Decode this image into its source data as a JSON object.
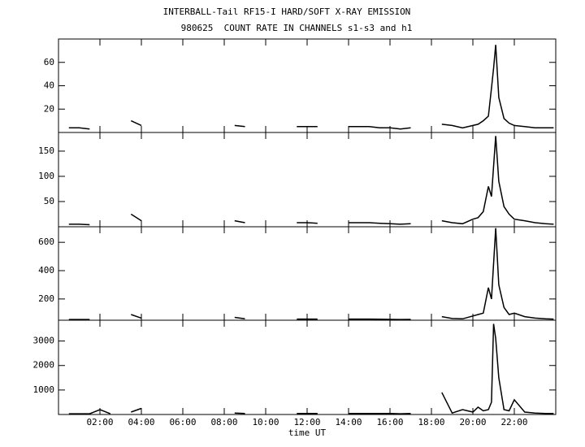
{
  "chart_data": [
    {
      "type": "line",
      "title": "INTERBALL-Tail RF15-I HARD/SOFT X-RAY EMISSION",
      "subtitle": "980625  COUNT RATE IN CHANNELS s1-s3 and h1",
      "x": [
        0.5,
        1,
        1.5,
        2,
        2.5,
        3,
        3.5,
        4,
        4.5,
        5,
        5.5,
        6,
        6.5,
        7,
        7.5,
        8,
        8.5,
        9,
        9.5,
        10,
        10.5,
        11,
        11.5,
        12,
        12.5,
        13,
        13.5,
        14,
        14.5,
        15,
        15.5,
        16,
        16.5,
        17,
        17.5,
        18,
        18.5,
        19,
        19.5,
        20,
        20.25,
        20.5,
        20.75,
        20.9,
        21,
        21.1,
        21.25,
        21.5,
        21.75,
        22,
        22.5,
        23,
        23.5,
        23.9
      ],
      "values": [
        4,
        4,
        3,
        null,
        3,
        null,
        10,
        6,
        null,
        3,
        null,
        null,
        3,
        null,
        3,
        null,
        6,
        5,
        null,
        null,
        null,
        null,
        5,
        5,
        5,
        null,
        null,
        5,
        5,
        5,
        4,
        4,
        3,
        4,
        null,
        null,
        7,
        6,
        4,
        6,
        7,
        10,
        14,
        38,
        55,
        75,
        30,
        12,
        8,
        6,
        5,
        4,
        4,
        4
      ],
      "color": "#000000",
      "xlim": [
        0,
        24
      ],
      "ylim": [
        0,
        80
      ],
      "yticks": [
        20,
        40,
        60
      ]
    },
    {
      "type": "line",
      "x": [
        0.5,
        1,
        1.5,
        2,
        2.5,
        3,
        3.5,
        4,
        4.5,
        5,
        5.5,
        6,
        6.5,
        7,
        7.5,
        8,
        8.5,
        9,
        9.5,
        10,
        10.5,
        11,
        11.5,
        12,
        12.5,
        13,
        13.5,
        14,
        14.5,
        15,
        15.5,
        16,
        16.5,
        17,
        17.5,
        18,
        18.5,
        19,
        19.5,
        20,
        20.25,
        20.5,
        20.75,
        20.9,
        21,
        21.1,
        21.25,
        21.5,
        21.75,
        22,
        22.5,
        23,
        23.5,
        23.9
      ],
      "values": [
        5,
        5,
        4,
        null,
        4,
        null,
        25,
        12,
        null,
        4,
        null,
        null,
        4,
        null,
        4,
        null,
        12,
        8,
        null,
        null,
        null,
        null,
        8,
        8,
        7,
        null,
        null,
        8,
        8,
        8,
        7,
        6,
        5,
        6,
        null,
        null,
        12,
        8,
        6,
        15,
        18,
        30,
        80,
        60,
        120,
        180,
        90,
        40,
        25,
        15,
        12,
        8,
        6,
        5
      ],
      "color": "#000000",
      "xlim": [
        0,
        24
      ],
      "ylim": [
        0,
        187
      ],
      "yticks": [
        50,
        100,
        150
      ]
    },
    {
      "type": "line",
      "x": [
        0.5,
        1,
        1.5,
        2,
        2.5,
        3,
        3.5,
        4,
        4.5,
        5,
        5.5,
        6,
        6.5,
        7,
        7.5,
        8,
        8.5,
        9,
        9.5,
        10,
        10.5,
        11,
        11.5,
        12,
        12.5,
        13,
        13.5,
        14,
        14.5,
        15,
        15.5,
        16,
        16.5,
        17,
        17.5,
        18,
        18.5,
        19,
        19.5,
        20,
        20.25,
        20.5,
        20.75,
        20.9,
        21,
        21.1,
        21.25,
        21.5,
        21.75,
        22,
        22.5,
        23,
        23.5,
        23.9
      ],
      "values": [
        55,
        55,
        55,
        null,
        55,
        null,
        90,
        65,
        null,
        55,
        null,
        null,
        55,
        null,
        55,
        null,
        70,
        60,
        null,
        null,
        null,
        null,
        58,
        58,
        58,
        null,
        null,
        58,
        58,
        58,
        57,
        56,
        55,
        56,
        null,
        null,
        75,
        62,
        60,
        80,
        90,
        100,
        280,
        200,
        450,
        700,
        300,
        140,
        90,
        100,
        75,
        65,
        60,
        58
      ],
      "color": "#000000",
      "xlim": [
        0,
        24
      ],
      "ylim": [
        50,
        710
      ],
      "yticks": [
        200,
        400,
        600
      ]
    },
    {
      "type": "line",
      "x_label": "time UT",
      "x": [
        0.5,
        1,
        1.5,
        2,
        2.5,
        3,
        3.5,
        4,
        4.5,
        5,
        5.5,
        6,
        6.5,
        7,
        7.5,
        8,
        8.5,
        9,
        9.5,
        10,
        10.5,
        11,
        11.5,
        12,
        12.5,
        13,
        13.5,
        14,
        14.5,
        15,
        15.5,
        16,
        16.5,
        17,
        17.5,
        18,
        18.5,
        19,
        19.5,
        20,
        20.25,
        20.5,
        20.75,
        20.9,
        21,
        21.1,
        21.25,
        21.5,
        21.75,
        22,
        22.5,
        23,
        23.5,
        23.9
      ],
      "values": [
        30,
        30,
        30,
        200,
        30,
        null,
        100,
        250,
        null,
        30,
        null,
        null,
        30,
        null,
        30,
        null,
        60,
        40,
        null,
        null,
        null,
        null,
        40,
        40,
        40,
        null,
        null,
        40,
        40,
        40,
        40,
        40,
        30,
        40,
        null,
        null,
        900,
        60,
        200,
        100,
        300,
        150,
        200,
        500,
        3700,
        3100,
        1500,
        200,
        150,
        600,
        100,
        60,
        40,
        40
      ],
      "color": "#000000",
      "xlim": [
        0,
        24
      ],
      "ylim": [
        0,
        3850
      ],
      "yticks": [
        1000,
        2000,
        3000
      ],
      "xticks": [
        {
          "value": 2,
          "label": "02:00"
        },
        {
          "value": 4,
          "label": "04:00"
        },
        {
          "value": 6,
          "label": "06:00"
        },
        {
          "value": 8,
          "label": "08:00"
        },
        {
          "value": 10,
          "label": "10:00"
        },
        {
          "value": 12,
          "label": "12:00"
        },
        {
          "value": 14,
          "label": "14:00"
        },
        {
          "value": 16,
          "label": "16:00"
        },
        {
          "value": 18,
          "label": "18:00"
        },
        {
          "value": 20,
          "label": "20:00"
        },
        {
          "value": 22,
          "label": "22:00"
        }
      ]
    }
  ]
}
